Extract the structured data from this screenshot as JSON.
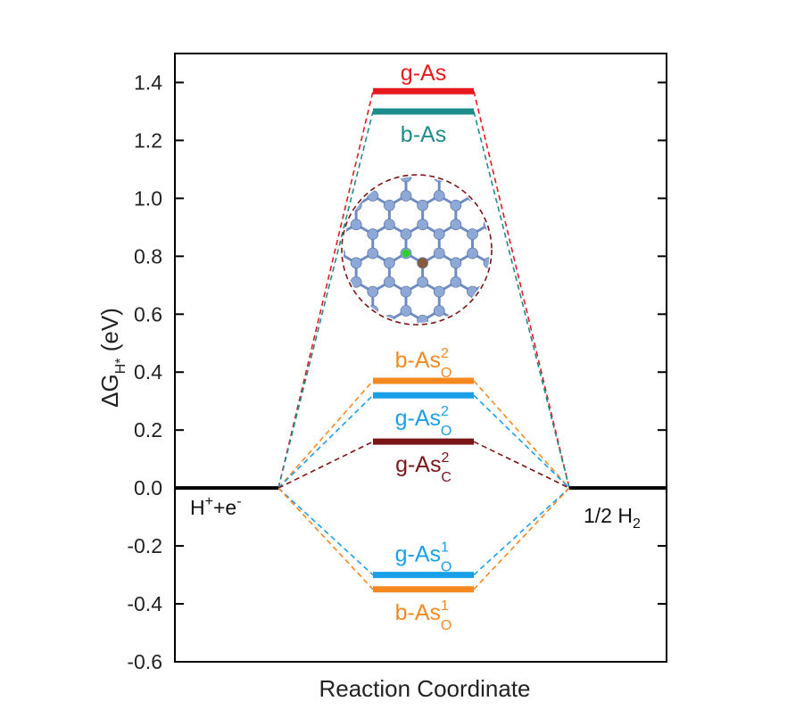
{
  "chart_data": {
    "type": "line",
    "title": "",
    "xlabel": "Reaction Coordinate",
    "ylabel_main": "ΔG",
    "ylabel_sub": "H*",
    "ylabel_unit": " (eV)",
    "ylim": [
      -0.6,
      1.5
    ],
    "yticks": [
      -0.6,
      -0.4,
      -0.2,
      0.0,
      0.2,
      0.4,
      0.6,
      0.8,
      1.0,
      1.2,
      1.4
    ],
    "ytick_labels": [
      "-0.6",
      "-0.4",
      "-0.2",
      "0.0",
      "0.2",
      "0.4",
      "0.6",
      "0.8",
      "1.0",
      "1.2",
      "1.4"
    ],
    "initial_state": {
      "value": 0.0,
      "label_main": "H",
      "label_sup1": "+",
      "label_mid": "+e",
      "label_sup2": "-"
    },
    "final_state": {
      "value": 0.0,
      "label_main": "1/2 H",
      "label_sub": "2"
    },
    "series": [
      {
        "name": "g-As",
        "base": "g-As",
        "sup": "",
        "sub": "",
        "value": 1.37,
        "color": "#e8191c",
        "label_pos": "above"
      },
      {
        "name": "b-As",
        "base": "b-As",
        "sup": "",
        "sub": "",
        "value": 1.3,
        "color": "#1f8c8c",
        "label_pos": "below"
      },
      {
        "name": "b-As2O",
        "base": "b-As",
        "sup": "2",
        "sub": "O",
        "value": 0.37,
        "color": "#f5891f",
        "label_pos": "above"
      },
      {
        "name": "g-As2O",
        "base": "g-As",
        "sup": "2",
        "sub": "O",
        "value": 0.32,
        "color": "#1aa0e8",
        "label_pos": "below"
      },
      {
        "name": "g-As2C",
        "base": "g-As",
        "sup": "2",
        "sub": "C",
        "value": 0.16,
        "color": "#7b1518",
        "label_pos": "below"
      },
      {
        "name": "g-As1O",
        "base": "g-As",
        "sup": "1",
        "sub": "O",
        "value": -0.3,
        "color": "#1aa0e8",
        "label_pos": "above"
      },
      {
        "name": "b-As1O",
        "base": "b-As",
        "sup": "1",
        "sub": "O",
        "value": -0.35,
        "color": "#f5891f",
        "label_pos": "below"
      }
    ]
  },
  "inset": {
    "description_name": "g-As lattice structure inset",
    "circle_color": "#7b1518",
    "atom_color": "#8fa9d6",
    "bond_color": "#6e8cc4",
    "dopant_color": "#8b5a3c",
    "hydrogen_color": "#2dcf2d"
  }
}
